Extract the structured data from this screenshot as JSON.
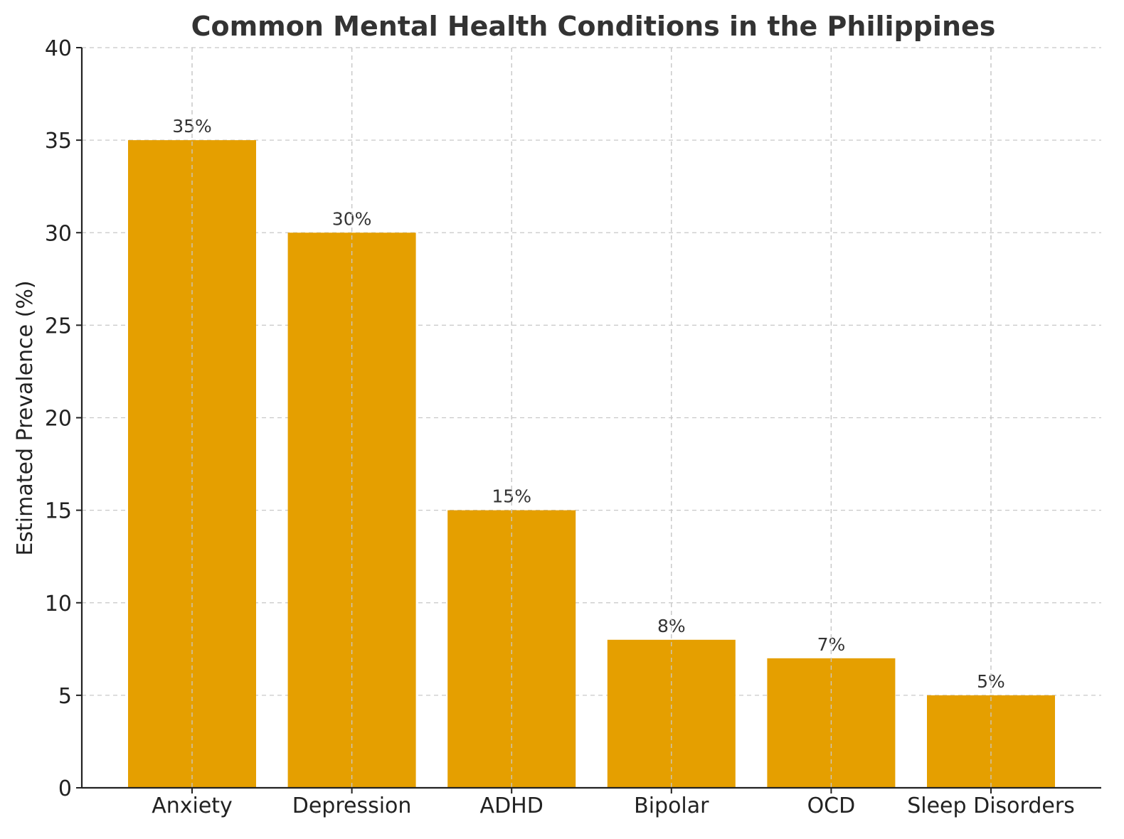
{
  "chart_data": {
    "type": "bar",
    "title": "Common Mental Health Conditions in the Philippines",
    "xlabel": "",
    "ylabel": "Estimated Prevalence (%)",
    "categories": [
      "Anxiety",
      "Depression",
      "ADHD",
      "Bipolar",
      "OCD",
      "Sleep Disorders"
    ],
    "values": [
      35,
      30,
      15,
      8,
      7,
      5
    ],
    "value_labels": [
      "35%",
      "30%",
      "15%",
      "8%",
      "7%",
      "5%"
    ],
    "ylim": [
      0,
      40
    ],
    "yticks": [
      0,
      5,
      10,
      15,
      20,
      25,
      30,
      35,
      40
    ],
    "grid": true,
    "colors": {
      "bar": "#E59F00",
      "grid": "#c8c8c8",
      "axis": "#222222",
      "title": "#333333"
    }
  }
}
